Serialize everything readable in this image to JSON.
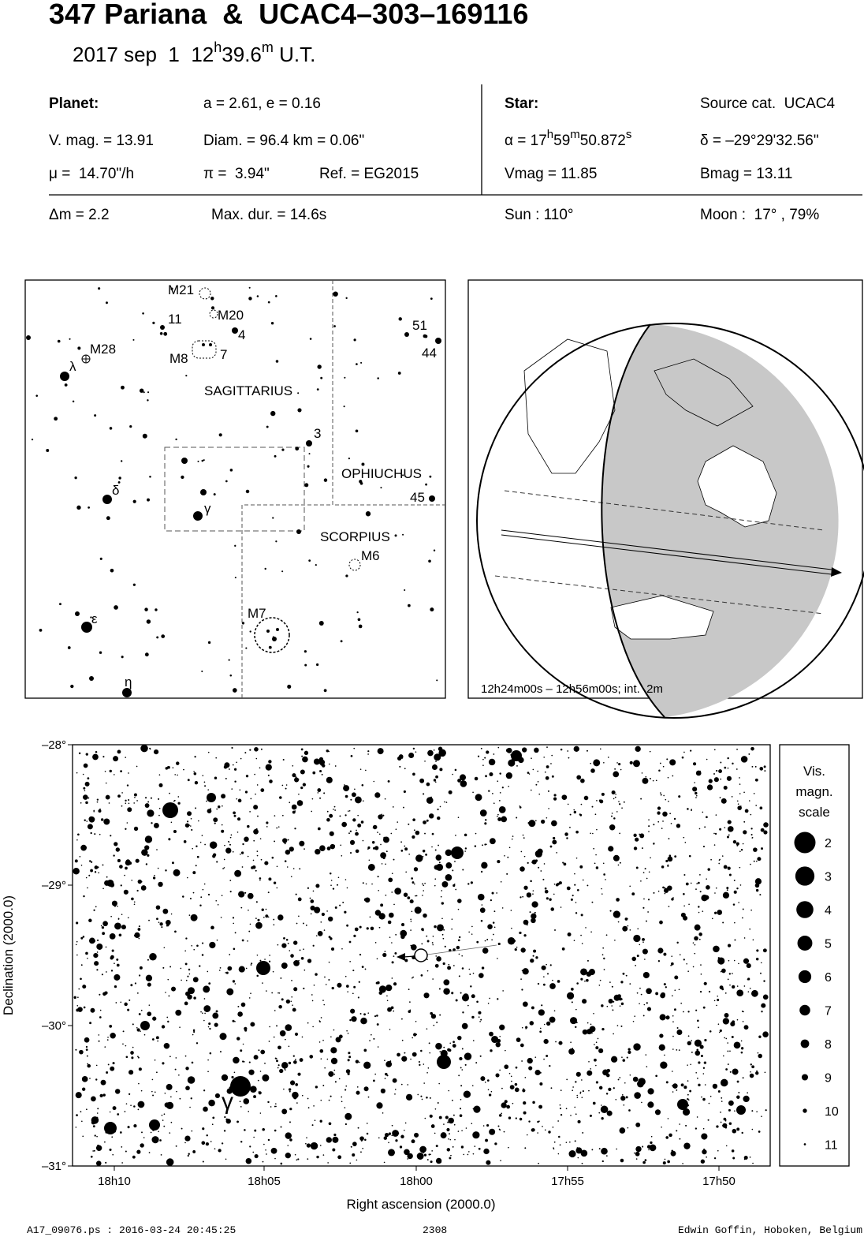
{
  "header": {
    "title": "347 Pariana  &  UCAC4–303–169116",
    "date": {
      "main": "2017 sep  1  12",
      "h": "h",
      "min": "39.6",
      "m": "m",
      "end": " U.T."
    }
  },
  "planet": {
    "label": "Planet:",
    "orbit": "a = 2.61, e = 0.16",
    "vmag": "V. mag. = 13.91",
    "diam": "Diam. = 96.4 km = 0.06\"",
    "mu": "μ =  14.70\"/h",
    "pi": "π =  3.94\"",
    "ref": "Ref. = EG2015"
  },
  "star": {
    "label": "Star:",
    "source": "Source cat.  UCAC4",
    "alpha": {
      "a": "α = 17",
      "h": "h",
      "b": "59",
      "m": "m",
      "c": "50.872",
      "s": "s"
    },
    "delta": "δ = –29°29'32.56\"",
    "vmag": "Vmag = 11.85",
    "bmag": "Bmag = 13.11"
  },
  "summary": {
    "dm": "Δm = 2.2",
    "maxdur": "Max. dur. = 14.6s",
    "sun": "Sun : 110°",
    "moon": "Moon :  17° , 79%"
  },
  "finder": {
    "labels": [
      "M21",
      "M20",
      "11",
      "4",
      "M28",
      "λ",
      "M8",
      "7",
      "51",
      "44",
      "SAGITTARIUS",
      "3",
      "δ",
      "OPHIUCHUS",
      "45",
      "γ",
      "SCORPIUS",
      "M6",
      "ε",
      "M7",
      "η"
    ]
  },
  "globe": {
    "caption": "12h24m00s – 12h56m00s; int.  2m"
  },
  "starfield": {
    "yticks": [
      "–28°",
      "–29°",
      "–30°",
      "–31°"
    ],
    "xticks": [
      "18h10",
      "18h05",
      "18h00",
      "17h55",
      "17h50"
    ],
    "xlabel": "Right ascension (2000.0)",
    "ylabel": "Declination (2000.0)",
    "gamma": "γ",
    "legend": {
      "title": [
        "Vis.",
        "magn.",
        "scale"
      ],
      "mags": [
        2,
        3,
        4,
        5,
        6,
        7,
        8,
        9,
        10,
        11
      ]
    }
  },
  "footer": {
    "file": "A17_09076.ps : 2016-03-24 20:45:25",
    "number": "2308",
    "author": "Edwin Goffin, Hoboken, Belgium"
  }
}
